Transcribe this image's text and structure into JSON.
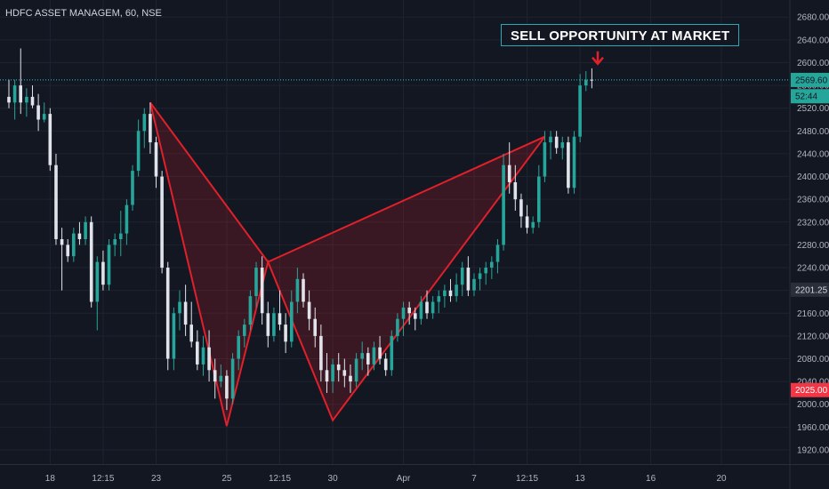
{
  "symbol_title": "HDFC ASSET MANAGEM, 60, NSE",
  "annotation": {
    "label": "SELL OPPORTUNITY AT MARKET"
  },
  "colors": {
    "background": "#131722",
    "grid": "#1f2330",
    "up_candle": "#26a69a",
    "down_candle": "#e1e3ea",
    "pattern_line": "#e0202a",
    "pattern_fill": "rgba(160,30,40,0.28)",
    "price_line": "#26c6da",
    "arrow": "#e0202a"
  },
  "chart_data": {
    "type": "candlestick",
    "y_range": [
      1895,
      2710
    ],
    "y_ticks": [
      "2680.00",
      "2640.00",
      "2600.00",
      "2560.00",
      "2520.00",
      "2480.00",
      "2440.00",
      "2400.00",
      "2360.00",
      "2320.00",
      "2280.00",
      "2240.00",
      "2200.00",
      "2160.00",
      "2120.00",
      "2080.00",
      "2040.00",
      "2000.00",
      "1960.00",
      "1920.00"
    ],
    "x_ticks": [
      {
        "bar": 7,
        "label": "18"
      },
      {
        "bar": 16,
        "label": "12:15"
      },
      {
        "bar": 25,
        "label": "23"
      },
      {
        "bar": 37,
        "label": "25"
      },
      {
        "bar": 46,
        "label": "12:15"
      },
      {
        "bar": 55,
        "label": "30"
      },
      {
        "bar": 67,
        "label": "Apr"
      },
      {
        "bar": 79,
        "label": "7"
      },
      {
        "bar": 88,
        "label": "12:15"
      },
      {
        "bar": 97,
        "label": "13"
      },
      {
        "bar": 109,
        "label": "16"
      },
      {
        "bar": 121,
        "label": "20"
      }
    ],
    "price_labels": [
      {
        "value": 2569.6,
        "label": "2569.60",
        "bg": "#26a69a",
        "fg": "#131722"
      },
      {
        "value": 2541.0,
        "label": "52:44",
        "bg": "#26a69a",
        "fg": "#131722"
      },
      {
        "value": 2201.25,
        "label": "2201.25",
        "bg": "#2a2e39",
        "fg": "#d1d4dc"
      },
      {
        "value": 2025.0,
        "label": "2025.00",
        "bg": "#f23645",
        "fg": "#ffffff"
      }
    ],
    "current_price": 2569.6,
    "pattern_points": [
      {
        "bar": 24,
        "price": 2530
      },
      {
        "bar": 37,
        "price": 1962
      },
      {
        "bar": 44,
        "price": 2250
      },
      {
        "bar": 55,
        "price": 1972
      },
      {
        "bar": 91,
        "price": 2470
      }
    ],
    "arrow_at": {
      "bar": 100,
      "price": 2598
    },
    "candles": [
      [
        2540,
        2570,
        2520,
        2530
      ],
      [
        2530,
        2570,
        2500,
        2560
      ],
      [
        2560,
        2625,
        2510,
        2530
      ],
      [
        2530,
        2555,
        2505,
        2540
      ],
      [
        2540,
        2560,
        2520,
        2525
      ],
      [
        2525,
        2545,
        2480,
        2500
      ],
      [
        2500,
        2530,
        2495,
        2510
      ],
      [
        2510,
        2520,
        2410,
        2420
      ],
      [
        2420,
        2440,
        2280,
        2290
      ],
      [
        2290,
        2310,
        2200,
        2280
      ],
      [
        2280,
        2290,
        2250,
        2260
      ],
      [
        2260,
        2310,
        2250,
        2300
      ],
      [
        2300,
        2320,
        2280,
        2290
      ],
      [
        2290,
        2330,
        2280,
        2320
      ],
      [
        2320,
        2330,
        2170,
        2180
      ],
      [
        2180,
        2260,
        2130,
        2250
      ],
      [
        2250,
        2270,
        2200,
        2210
      ],
      [
        2210,
        2290,
        2200,
        2280
      ],
      [
        2280,
        2300,
        2260,
        2290
      ],
      [
        2290,
        2340,
        2260,
        2300
      ],
      [
        2300,
        2360,
        2280,
        2350
      ],
      [
        2350,
        2420,
        2340,
        2410
      ],
      [
        2410,
        2500,
        2400,
        2480
      ],
      [
        2480,
        2520,
        2450,
        2510
      ],
      [
        2510,
        2530,
        2440,
        2460
      ],
      [
        2460,
        2470,
        2380,
        2400
      ],
      [
        2400,
        2410,
        2230,
        2240
      ],
      [
        2240,
        2250,
        2060,
        2080
      ],
      [
        2080,
        2170,
        2060,
        2160
      ],
      [
        2160,
        2200,
        2130,
        2180
      ],
      [
        2180,
        2210,
        2120,
        2140
      ],
      [
        2140,
        2180,
        2100,
        2110
      ],
      [
        2110,
        2130,
        2060,
        2070
      ],
      [
        2070,
        2120,
        2050,
        2100
      ],
      [
        2100,
        2130,
        2040,
        2060
      ],
      [
        2060,
        2080,
        2010,
        2040
      ],
      [
        2040,
        2070,
        2030,
        2050
      ],
      [
        2050,
        2060,
        1990,
        2010
      ],
      [
        2010,
        2090,
        2000,
        2080
      ],
      [
        2080,
        2130,
        2060,
        2120
      ],
      [
        2120,
        2150,
        2100,
        2140
      ],
      [
        2140,
        2200,
        2130,
        2190
      ],
      [
        2190,
        2250,
        2170,
        2240
      ],
      [
        2240,
        2260,
        2140,
        2160
      ],
      [
        2160,
        2180,
        2100,
        2120
      ],
      [
        2120,
        2170,
        2110,
        2160
      ],
      [
        2160,
        2200,
        2130,
        2140
      ],
      [
        2140,
        2160,
        2090,
        2110
      ],
      [
        2110,
        2200,
        2100,
        2180
      ],
      [
        2180,
        2240,
        2160,
        2220
      ],
      [
        2220,
        2230,
        2170,
        2180
      ],
      [
        2180,
        2200,
        2130,
        2150
      ],
      [
        2150,
        2170,
        2100,
        2120
      ],
      [
        2120,
        2140,
        2040,
        2060
      ],
      [
        2060,
        2090,
        2020,
        2040
      ],
      [
        2040,
        2080,
        2020,
        2070
      ],
      [
        2070,
        2090,
        2040,
        2060
      ],
      [
        2060,
        2080,
        2030,
        2050
      ],
      [
        2050,
        2070,
        2020,
        2040
      ],
      [
        2040,
        2090,
        2030,
        2080
      ],
      [
        2080,
        2110,
        2060,
        2090
      ],
      [
        2090,
        2100,
        2050,
        2070
      ],
      [
        2070,
        2110,
        2060,
        2100
      ],
      [
        2100,
        2120,
        2070,
        2080
      ],
      [
        2080,
        2090,
        2050,
        2060
      ],
      [
        2060,
        2130,
        2050,
        2120
      ],
      [
        2120,
        2160,
        2110,
        2150
      ],
      [
        2150,
        2180,
        2120,
        2170
      ],
      [
        2170,
        2180,
        2140,
        2160
      ],
      [
        2160,
        2170,
        2130,
        2150
      ],
      [
        2150,
        2190,
        2140,
        2180
      ],
      [
        2180,
        2200,
        2150,
        2160
      ],
      [
        2160,
        2190,
        2150,
        2180
      ],
      [
        2180,
        2200,
        2160,
        2190
      ],
      [
        2190,
        2210,
        2170,
        2200
      ],
      [
        2200,
        2220,
        2180,
        2190
      ],
      [
        2190,
        2230,
        2180,
        2210
      ],
      [
        2210,
        2250,
        2190,
        2240
      ],
      [
        2240,
        2260,
        2190,
        2200
      ],
      [
        2200,
        2230,
        2190,
        2220
      ],
      [
        2220,
        2240,
        2200,
        2230
      ],
      [
        2230,
        2250,
        2210,
        2240
      ],
      [
        2240,
        2260,
        2220,
        2250
      ],
      [
        2250,
        2290,
        2230,
        2280
      ],
      [
        2280,
        2440,
        2270,
        2420
      ],
      [
        2420,
        2460,
        2370,
        2390
      ],
      [
        2390,
        2420,
        2340,
        2360
      ],
      [
        2360,
        2370,
        2310,
        2330
      ],
      [
        2330,
        2350,
        2300,
        2310
      ],
      [
        2310,
        2330,
        2300,
        2320
      ],
      [
        2320,
        2420,
        2310,
        2400
      ],
      [
        2400,
        2480,
        2390,
        2460
      ],
      [
        2460,
        2480,
        2430,
        2470
      ],
      [
        2470,
        2480,
        2440,
        2450
      ],
      [
        2450,
        2470,
        2430,
        2460
      ],
      [
        2460,
        2470,
        2370,
        2380
      ],
      [
        2380,
        2480,
        2370,
        2470
      ],
      [
        2470,
        2580,
        2460,
        2560
      ],
      [
        2560,
        2585,
        2550,
        2570
      ],
      [
        2570,
        2590,
        2555,
        2569.6
      ]
    ]
  }
}
